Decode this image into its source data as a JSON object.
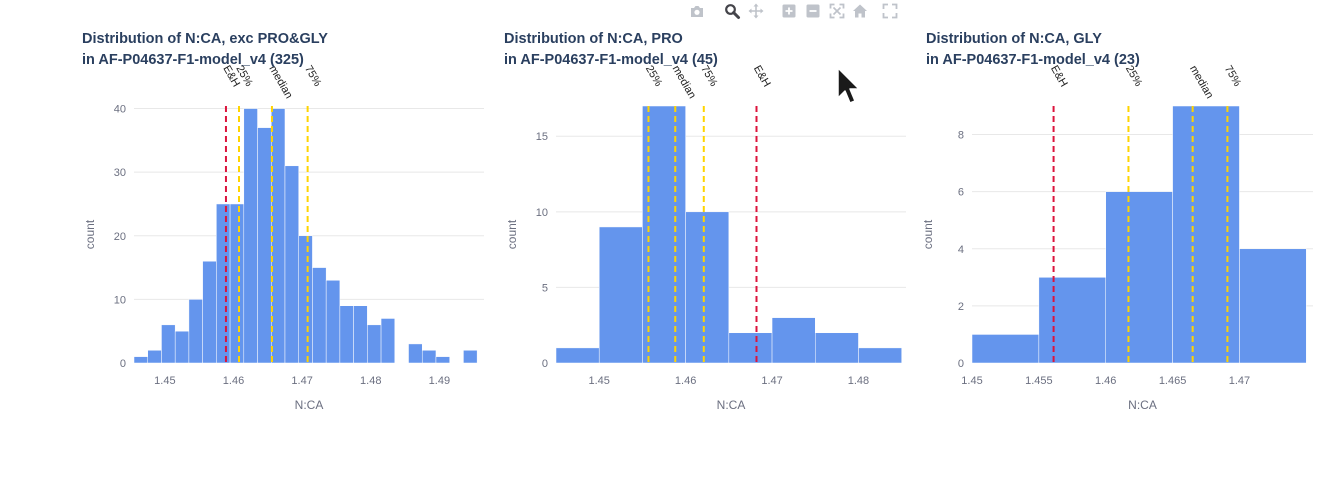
{
  "modebar": {
    "buttons": [
      {
        "name": "camera-icon",
        "active": false
      },
      {
        "name": "zoom-icon",
        "active": true
      },
      {
        "name": "pan-icon",
        "active": false
      },
      {
        "name": "zoom-in-icon",
        "active": false
      },
      {
        "name": "zoom-out-icon",
        "active": false
      },
      {
        "name": "autoscale-icon",
        "active": false
      },
      {
        "name": "reset-axes-icon",
        "active": false
      },
      {
        "name": "fullscreen-icon",
        "active": false
      }
    ]
  },
  "colors": {
    "bar": "#6495ED",
    "quartile": "#FFD400",
    "eh": "#DC143C",
    "grid": "#E8E8E8",
    "title": "#2A3F5F"
  },
  "chart_data": [
    {
      "type": "bar",
      "title": [
        "Distribution of N:CA, exc PRO&GLY",
        "in AF-P04637-F1-model_v4 (325)"
      ],
      "xlabel": "N:CA",
      "ylabel": "count",
      "xlim": [
        1.4455,
        1.4965
      ],
      "ylim": [
        0,
        40.4
      ],
      "xticks": [
        {
          "v": 1.45,
          "label": "1.45"
        },
        {
          "v": 1.46,
          "label": "1.46"
        },
        {
          "v": 1.47,
          "label": "1.47"
        },
        {
          "v": 1.48,
          "label": "1.48"
        },
        {
          "v": 1.49,
          "label": "1.49"
        }
      ],
      "yticks": [
        {
          "v": 0,
          "label": "0"
        },
        {
          "v": 10,
          "label": "10"
        },
        {
          "v": 20,
          "label": "20"
        },
        {
          "v": 30,
          "label": "30"
        },
        {
          "v": 40,
          "label": "40"
        }
      ],
      "bins": {
        "start": 1.4455,
        "width": 0.002,
        "counts": [
          1,
          2,
          6,
          5,
          10,
          16,
          25,
          25,
          40,
          37,
          40,
          31,
          20,
          15,
          13,
          9,
          9,
          6,
          7,
          0,
          3,
          2,
          1,
          0,
          2
        ]
      },
      "markers": [
        {
          "label": "E&H",
          "x": 1.4589,
          "kind": "eh"
        },
        {
          "label": "25%",
          "x": 1.4608,
          "kind": "quartile"
        },
        {
          "label": "median",
          "x": 1.4656,
          "kind": "quartile"
        },
        {
          "label": "75%",
          "x": 1.4708,
          "kind": "quartile"
        }
      ]
    },
    {
      "type": "bar",
      "title": [
        "Distribution of N:CA, PRO",
        "in AF-P04637-F1-model_v4 (45)"
      ],
      "xlabel": "N:CA",
      "ylabel": "count",
      "xlim": [
        1.445,
        1.4855
      ],
      "ylim": [
        0,
        17
      ],
      "xticks": [
        {
          "v": 1.45,
          "label": "1.45"
        },
        {
          "v": 1.46,
          "label": "1.46"
        },
        {
          "v": 1.47,
          "label": "1.47"
        },
        {
          "v": 1.48,
          "label": "1.48"
        }
      ],
      "yticks": [
        {
          "v": 0,
          "label": "0"
        },
        {
          "v": 5,
          "label": "5"
        },
        {
          "v": 10,
          "label": "10"
        },
        {
          "v": 15,
          "label": "15"
        }
      ],
      "bins": {
        "start": 1.445,
        "width": 0.005,
        "counts": [
          1,
          9,
          17,
          10,
          2,
          3,
          2,
          1
        ]
      },
      "markers": [
        {
          "label": "25%",
          "x": 1.4557,
          "kind": "quartile"
        },
        {
          "label": "median",
          "x": 1.4588,
          "kind": "quartile"
        },
        {
          "label": "75%",
          "x": 1.4621,
          "kind": "quartile"
        },
        {
          "label": "E&H",
          "x": 1.4682,
          "kind": "eh"
        }
      ]
    },
    {
      "type": "bar",
      "title": [
        "Distribution of N:CA, GLY",
        "in AF-P04637-F1-model_v4 (23)"
      ],
      "xlabel": "N:CA",
      "ylabel": "count",
      "xlim": [
        1.45,
        1.4755
      ],
      "ylim": [
        0,
        9
      ],
      "xticks": [
        {
          "v": 1.45,
          "label": "1.45"
        },
        {
          "v": 1.455,
          "label": "1.455"
        },
        {
          "v": 1.46,
          "label": "1.46"
        },
        {
          "v": 1.465,
          "label": "1.465"
        },
        {
          "v": 1.47,
          "label": "1.47"
        }
      ],
      "yticks": [
        {
          "v": 0,
          "label": "0"
        },
        {
          "v": 2,
          "label": "2"
        },
        {
          "v": 4,
          "label": "4"
        },
        {
          "v": 6,
          "label": "6"
        },
        {
          "v": 8,
          "label": "8"
        }
      ],
      "bins": {
        "start": 1.45,
        "width": 0.005,
        "counts": [
          1,
          3,
          6,
          9,
          4
        ]
      },
      "markers": [
        {
          "label": "E&H",
          "x": 1.4561,
          "kind": "eh"
        },
        {
          "label": "25%",
          "x": 1.4617,
          "kind": "quartile"
        },
        {
          "label": "median",
          "x": 1.4665,
          "kind": "quartile"
        },
        {
          "label": "75%",
          "x": 1.4691,
          "kind": "quartile"
        }
      ]
    }
  ]
}
